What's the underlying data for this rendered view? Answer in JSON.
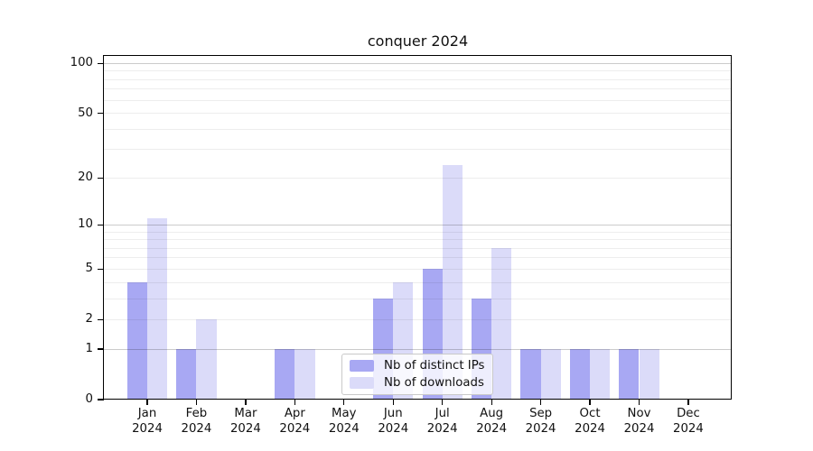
{
  "chart_data": {
    "type": "bar",
    "title": "conquer 2024",
    "categories": [
      "Jan 2024",
      "Feb 2024",
      "Mar 2024",
      "Apr 2024",
      "May 2024",
      "Jun 2024",
      "Jul 2024",
      "Aug 2024",
      "Sep 2024",
      "Oct 2024",
      "Nov 2024",
      "Dec 2024"
    ],
    "series": [
      {
        "name": "Nb of distinct IPs",
        "color": "#a8a8f3",
        "values": [
          4,
          1,
          0,
          1,
          0,
          3,
          5,
          3,
          1,
          1,
          1,
          0
        ]
      },
      {
        "name": "Nb of downloads",
        "color": "#dbdbf9",
        "values": [
          11,
          2,
          0,
          1,
          0,
          4,
          24,
          7,
          1,
          1,
          1,
          0
        ]
      }
    ],
    "yscale": "log1p",
    "ylim": [
      0,
      112
    ],
    "ytick_labels": [
      "0",
      "1",
      "2",
      "5",
      "10",
      "20",
      "50",
      "100"
    ],
    "yticks_labeled": [
      0,
      1,
      2,
      5,
      10,
      20,
      50,
      100
    ],
    "grid_lines_faint": [
      2,
      3,
      4,
      5,
      6,
      7,
      8,
      9,
      20,
      30,
      40,
      50,
      60,
      70,
      80,
      90
    ],
    "grid_lines_dark": [
      1,
      10,
      100
    ],
    "grid": "on",
    "legend_position": "lower center",
    "xlabel": "",
    "ylabel": ""
  },
  "colors": {
    "bar_distinct_ips": "#a8a8f3",
    "bar_downloads": "#dbdbf9",
    "grid_major": "rgba(20,20,20,0.22)",
    "grid_minor": "rgba(20,20,20,0.075)",
    "spine": "#000000",
    "text": "#111111",
    "legend_border": "#c9c9c9"
  }
}
